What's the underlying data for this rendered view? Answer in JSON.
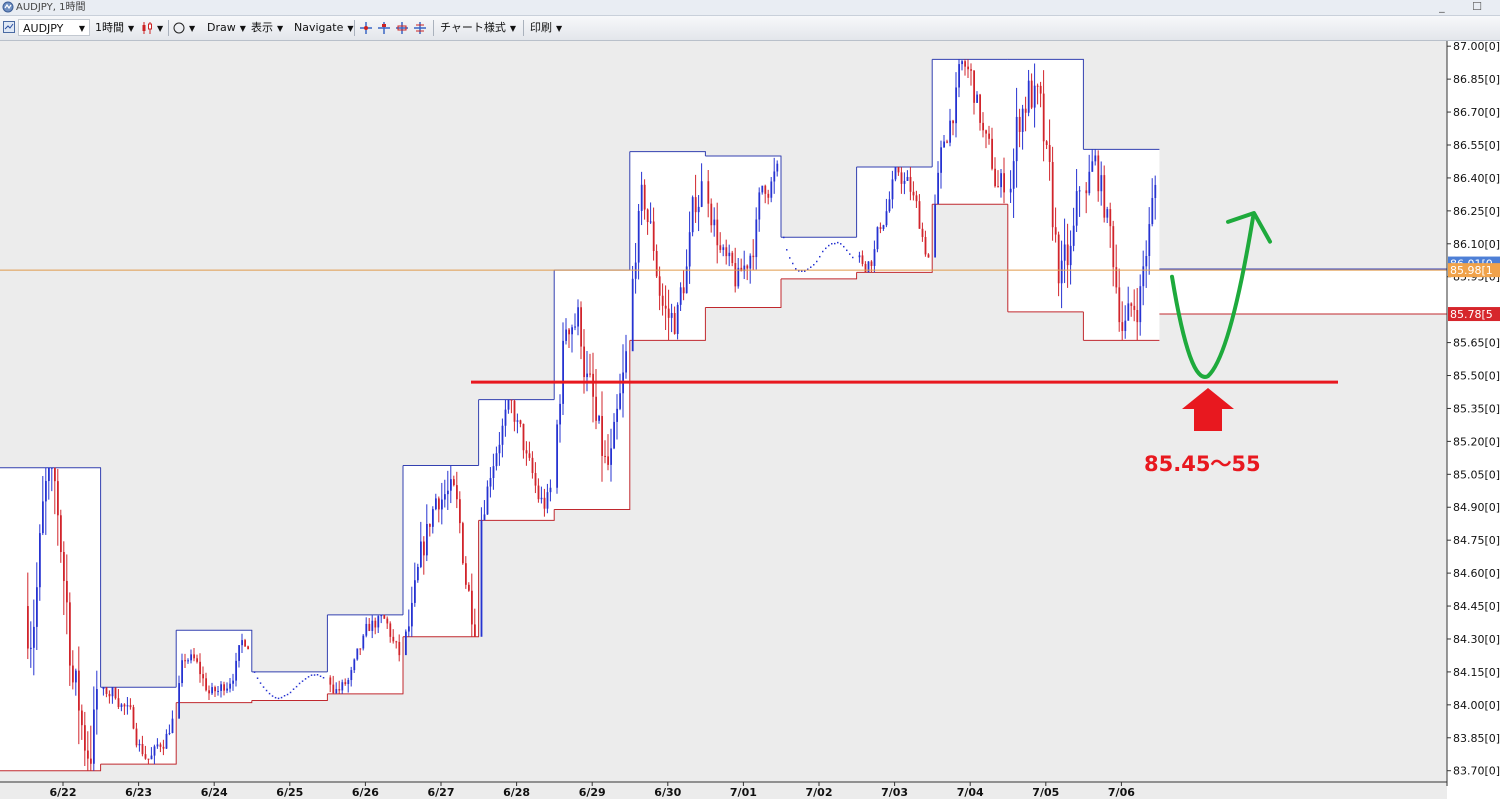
{
  "window": {
    "title": "AUDJPY, 1時間",
    "controls": "_ ☐"
  },
  "toolbar": {
    "symbol": "AUDJPY",
    "timeframe": "1時間",
    "draw": "Draw",
    "display": "表示",
    "navigate": "Navigate",
    "chart_style": "チャート様式",
    "print": "印刷",
    "icons": [
      "chart-grid-icon",
      "candle-type-icon",
      "circle-tool-icon",
      "crosshair-icons"
    ]
  },
  "colors": {
    "up_box": "#3340b0",
    "down_box": "#c0282e",
    "candle_up": "#2633d1",
    "candle_down": "#d1242b",
    "support": "#e8181f",
    "arrow_green": "#1eaa3c",
    "price_line": "#e09a4b"
  },
  "price_labels": {
    "current": "85.98[1",
    "current_hidden": "86.01[0",
    "low_line": "85.78[5"
  },
  "annotation": {
    "zone_text": "85.45～55"
  },
  "chart_data": {
    "type": "candlestick",
    "symbol": "AUDJPY",
    "timeframe": "1時間",
    "x_labels": [
      "6/22",
      "6/23",
      "6/24",
      "6/25",
      "6/26",
      "6/27",
      "6/28",
      "6/29",
      "6/30",
      "7/01",
      "7/02",
      "7/03",
      "7/04",
      "7/05",
      "7/06"
    ],
    "y_ticks": [
      "87.00[0]",
      "86.85[0]",
      "86.70[0]",
      "86.55[0]",
      "86.40[0]",
      "86.25[0]",
      "86.10[0]",
      "85.95[0]",
      "85.65[0]",
      "85.50[0]",
      "85.35[0]",
      "85.20[0]",
      "85.05[0]",
      "84.90[0]",
      "84.75[0]",
      "84.60[0]",
      "84.45[0]",
      "84.30[0]",
      "84.15[0]",
      "84.00[0]",
      "83.85[0]",
      "83.70[0]"
    ],
    "ylim": [
      83.685,
      87.01
    ],
    "day_ranges": [
      {
        "date": "6/22",
        "high": 85.08,
        "low": 83.7
      },
      {
        "date": "6/23",
        "high": 84.08,
        "low": 83.73
      },
      {
        "date": "6/24",
        "high": 84.34,
        "low": 84.01
      },
      {
        "date": "6/25",
        "high": 84.15,
        "low": 84.02
      },
      {
        "date": "6/26",
        "high": 84.41,
        "low": 84.05
      },
      {
        "date": "6/27",
        "high": 85.09,
        "low": 84.31
      },
      {
        "date": "6/28",
        "high": 85.39,
        "low": 84.84
      },
      {
        "date": "6/29",
        "high": 85.98,
        "low": 84.89
      },
      {
        "date": "6/30",
        "high": 86.52,
        "low": 85.66
      },
      {
        "date": "7/01",
        "high": 86.5,
        "low": 85.81
      },
      {
        "date": "7/02",
        "high": 86.13,
        "low": 85.94
      },
      {
        "date": "7/03",
        "high": 86.45,
        "low": 85.97
      },
      {
        "date": "7/04",
        "high": 86.94,
        "low": 86.28
      },
      {
        "date": "7/05",
        "high": 86.94,
        "low": 85.79
      },
      {
        "date": "7/06",
        "high": 86.53,
        "low": 85.66
      }
    ],
    "lines": [
      {
        "name": "support",
        "value": 85.47
      },
      {
        "name": "current",
        "value": 85.98
      },
      {
        "name": "low_line",
        "value": 85.78
      }
    ]
  }
}
